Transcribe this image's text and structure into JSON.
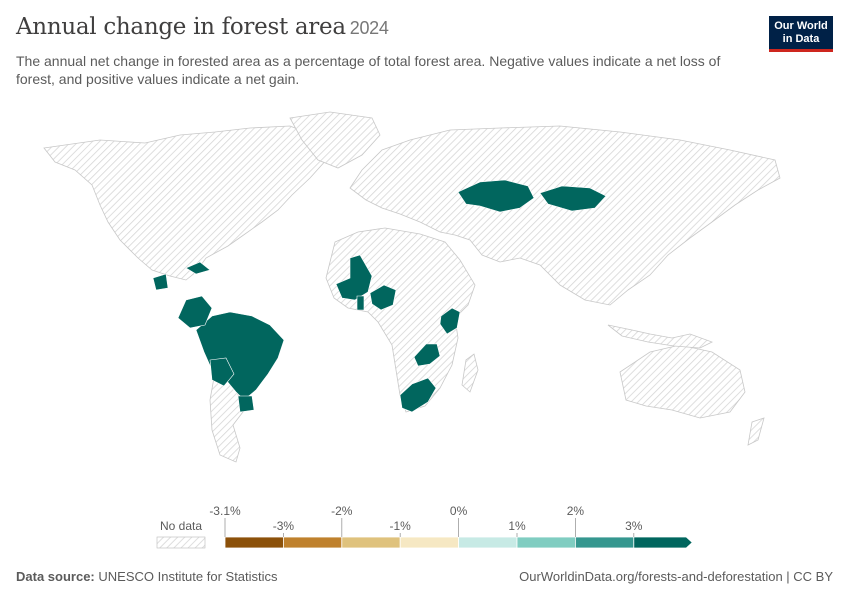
{
  "header": {
    "title": "Annual change in forest area",
    "year": "2024",
    "subtitle": "The annual net change in forested area as a percentage of total forest area. Negative values indicate a net loss of forest, and positive values indicate a net gain.",
    "logo_line1": "Our World",
    "logo_line2": "in Data"
  },
  "legend": {
    "no_data_label": "No data",
    "ticks_top": [
      "-3.1%",
      "-2%",
      "0%",
      "2%"
    ],
    "ticks_bottom": [
      "-3%",
      "-1%",
      "1%",
      "3%"
    ],
    "bins": [
      {
        "from": -3.1,
        "to": -3,
        "color": "#8c510a"
      },
      {
        "from": -3,
        "to": -2,
        "color": "#bf812d"
      },
      {
        "from": -2,
        "to": -1,
        "color": "#dfc27d"
      },
      {
        "from": -1,
        "to": 0,
        "color": "#f6e8c3"
      },
      {
        "from": 0,
        "to": 1,
        "color": "#c7eae5"
      },
      {
        "from": 1,
        "to": 2,
        "color": "#80cdc1"
      },
      {
        "from": 2,
        "to": 3,
        "color": "#35978f"
      },
      {
        "from": 3,
        "to": null,
        "color": "#01665e"
      }
    ]
  },
  "colors": {
    "highlight": "#01665e",
    "no_data_fill": "#f2f2f2",
    "border": "#c8c8c8"
  },
  "countries_with_data": [
    "Kazakhstan",
    "Mongolia",
    "Mali",
    "Nigeria",
    "Kenya",
    "Zambia",
    "South Africa",
    "Brazil",
    "Colombia",
    "Bolivia",
    "Uruguay",
    "Guatemala",
    "Cuba"
  ],
  "footer": {
    "source_label": "Data source:",
    "source_text": "UNESCO Institute for Statistics",
    "credit": "OurWorldinData.org/forests-and-deforestation | CC BY"
  }
}
